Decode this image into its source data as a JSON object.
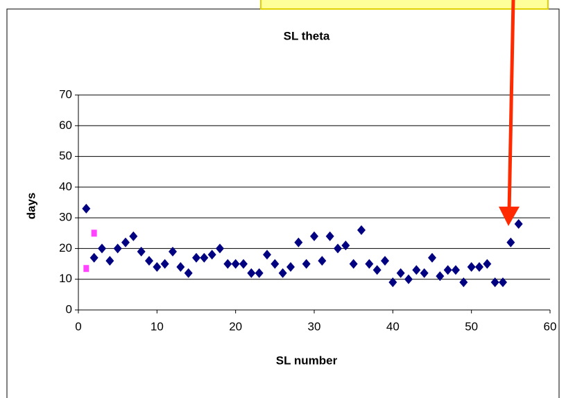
{
  "chart_data": {
    "type": "scatter",
    "title": "SL theta",
    "xlabel": "SL number",
    "ylabel": "days",
    "xlim": [
      0,
      60
    ],
    "xticks": [
      0,
      10,
      20,
      30,
      40,
      50,
      60
    ],
    "ylim": [
      0,
      70
    ],
    "yticks": [
      0,
      10,
      20,
      30,
      40,
      50,
      60,
      70
    ],
    "grid": true,
    "series": [
      {
        "color": "#000080",
        "marker": "diamond",
        "x": [
          1,
          2,
          3,
          4,
          5,
          6,
          7,
          8,
          9,
          10,
          11,
          12,
          13,
          14,
          15,
          16,
          17,
          18,
          19,
          20,
          21,
          22,
          23,
          24,
          25,
          26,
          27,
          28,
          29,
          30,
          31,
          32,
          33,
          34,
          35,
          36,
          37,
          38,
          39,
          40,
          41,
          42,
          43,
          44,
          45,
          46,
          47,
          48,
          49,
          50,
          51,
          52,
          53,
          54,
          55,
          56
        ],
        "values": [
          33,
          17,
          20,
          16,
          20,
          22,
          24,
          19,
          16,
          14,
          15,
          19,
          14,
          12,
          17,
          17,
          18,
          20,
          15,
          15,
          15,
          12,
          12,
          18,
          15,
          12,
          14,
          22,
          15,
          24,
          16,
          24,
          20,
          21,
          15,
          26,
          15,
          13,
          16,
          9,
          12,
          10,
          13,
          12,
          17,
          11,
          13,
          13,
          9,
          14,
          14,
          15,
          9,
          9,
          22,
          28
        ]
      },
      {
        "color": "#ff44ff",
        "marker": "square",
        "x": [
          1,
          2
        ],
        "values": [
          13.5,
          25
        ]
      }
    ]
  }
}
